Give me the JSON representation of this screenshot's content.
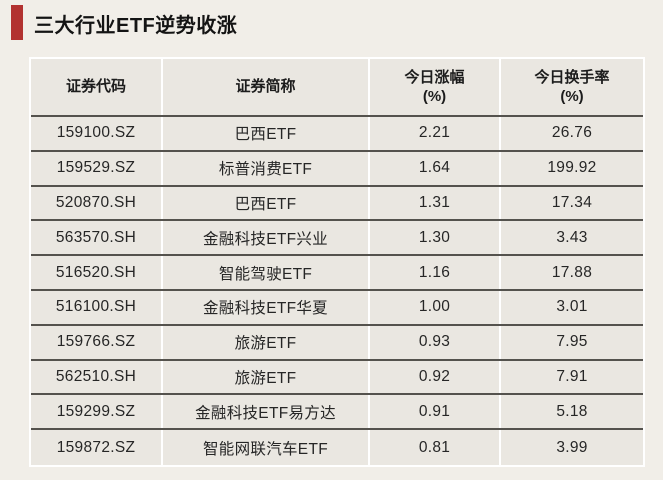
{
  "page": {
    "background_color": "#f1eee8",
    "table_background_color": "#eae7e1",
    "grid_line_color": "#ffffff",
    "row_separator_color": "#54524d"
  },
  "header": {
    "title": "三大行业ETF逆势收涨",
    "accent_color": "#b23230"
  },
  "table_columns": [
    {
      "label": "证券代码",
      "unit": ""
    },
    {
      "label": "证券简称",
      "unit": ""
    },
    {
      "label": "今日涨幅",
      "unit": "(%)"
    },
    {
      "label": "今日换手率",
      "unit": "(%)"
    }
  ],
  "chart_data": {
    "type": "table",
    "title": "三大行业ETF逆势收涨",
    "columns": [
      "证券代码",
      "证券简称",
      "今日涨幅(%)",
      "今日换手率(%)"
    ],
    "rows": [
      [
        "159100.SZ",
        "巴西ETF",
        2.21,
        26.76
      ],
      [
        "159529.SZ",
        "标普消费ETF",
        1.64,
        199.92
      ],
      [
        "520870.SH",
        "巴西ETF",
        1.31,
        17.34
      ],
      [
        "563570.SH",
        "金融科技ETF兴业",
        1.3,
        3.43
      ],
      [
        "516520.SH",
        "智能驾驶ETF",
        1.16,
        17.88
      ],
      [
        "516100.SH",
        "金融科技ETF华夏",
        1.0,
        3.01
      ],
      [
        "159766.SZ",
        "旅游ETF",
        0.93,
        7.95
      ],
      [
        "562510.SH",
        "旅游ETF",
        0.92,
        7.91
      ],
      [
        "159299.SZ",
        "金融科技ETF易方达",
        0.91,
        5.18
      ],
      [
        "159872.SZ",
        "智能网联汽车ETF",
        0.81,
        3.99
      ]
    ]
  }
}
